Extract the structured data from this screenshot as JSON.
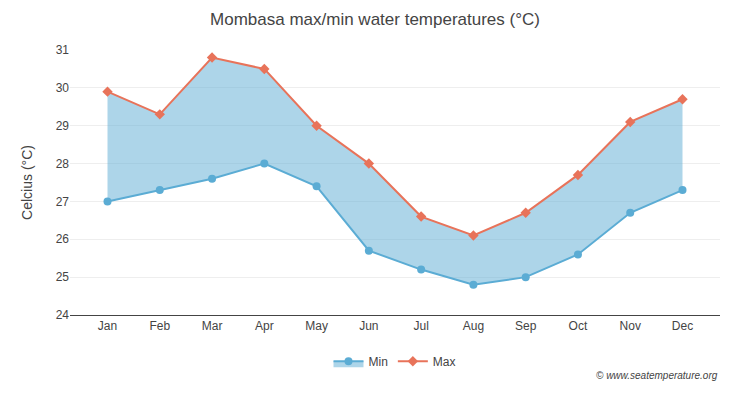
{
  "chart_data": {
    "type": "line",
    "title": "Mombasa max/min water temperatures (°C)",
    "ylabel": "Celcius (°C)",
    "categories": [
      "Jan",
      "Feb",
      "Mar",
      "Apr",
      "May",
      "Jun",
      "Jul",
      "Aug",
      "Sep",
      "Oct",
      "Nov",
      "Dec"
    ],
    "series": [
      {
        "name": "Max",
        "color": "#E8735A",
        "marker": "diamond",
        "values": [
          29.9,
          29.3,
          30.8,
          30.5,
          29.0,
          28.0,
          26.6,
          26.1,
          26.7,
          27.7,
          29.1,
          29.7
        ]
      },
      {
        "name": "Min",
        "color": "#5BACD4",
        "marker": "circle",
        "values": [
          27.0,
          27.3,
          27.6,
          28.0,
          27.4,
          25.7,
          25.2,
          24.8,
          25.0,
          25.6,
          26.7,
          27.3
        ]
      }
    ],
    "ylim": [
      24,
      31
    ],
    "yticks": [
      24,
      25,
      26,
      27,
      28,
      29,
      30,
      31
    ],
    "grid": true,
    "legend": "bottom",
    "annotations": [
      "© www.seatemperature.org"
    ]
  }
}
